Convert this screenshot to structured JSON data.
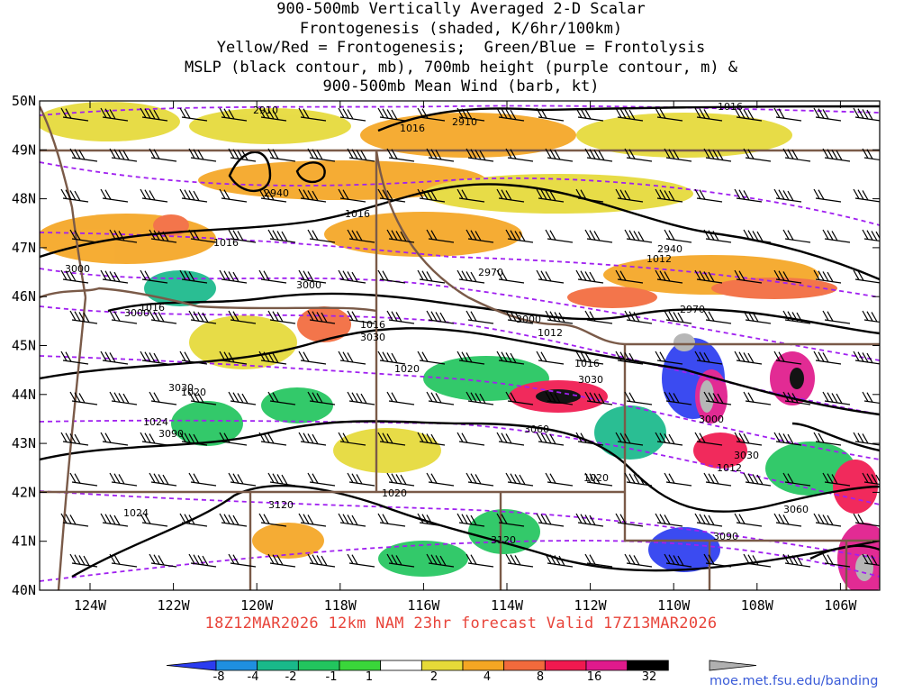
{
  "title_lines": [
    "900-500mb Vertically Averaged 2-D Scalar",
    "Frontogenesis (shaded, K/6hr/100km)",
    "Yellow/Red = Frontogenesis;  Green/Blue = Frontolysis",
    "MSLP (black contour, mb), 700mb height (purple contour, m) &",
    "900-500mb Mean Wind (barb, kt)"
  ],
  "subtitle": "18Z12MAR2026 12km NAM 23hr forecast Valid 17Z13MAR2026",
  "credit": "moe.met.fsu.edu/banding",
  "lat_labels": [
    "50N",
    "49N",
    "48N",
    "47N",
    "46N",
    "45N",
    "44N",
    "43N",
    "42N",
    "41N",
    "40N"
  ],
  "lon_labels": [
    "124W",
    "122W",
    "120W",
    "118W",
    "116W",
    "114W",
    "112W",
    "110W",
    "108W",
    "106W"
  ],
  "colorbar": {
    "labels": [
      "-8",
      "-4",
      "-2",
      "-1",
      "1",
      "2",
      "4",
      "8",
      "16",
      "32"
    ],
    "colors": [
      "#2b3cf0",
      "#1f8fe0",
      "#19b98a",
      "#22c55e",
      "#3ad63a",
      "#ffffff",
      "#e6da38",
      "#f5a623",
      "#f26a3c",
      "#f0194f",
      "#e01a8c",
      "#000000",
      "#b0b0b0"
    ]
  },
  "mslp_labels": [
    "1016",
    "1016",
    "1016",
    "1016",
    "1016",
    "1016",
    "1012",
    "1012",
    "1016",
    "1020",
    "1020",
    "1024",
    "1024",
    "1020",
    "1020",
    "1012",
    "1020"
  ],
  "height_labels": [
    "2910",
    "2910",
    "2910",
    "2940",
    "2940",
    "2970",
    "2970",
    "3000",
    "3000",
    "3000",
    "3000",
    "3030",
    "3030",
    "3030",
    "3060",
    "3060",
    "3090",
    "3120",
    "3120",
    "3090",
    "3000",
    "3030"
  ]
}
